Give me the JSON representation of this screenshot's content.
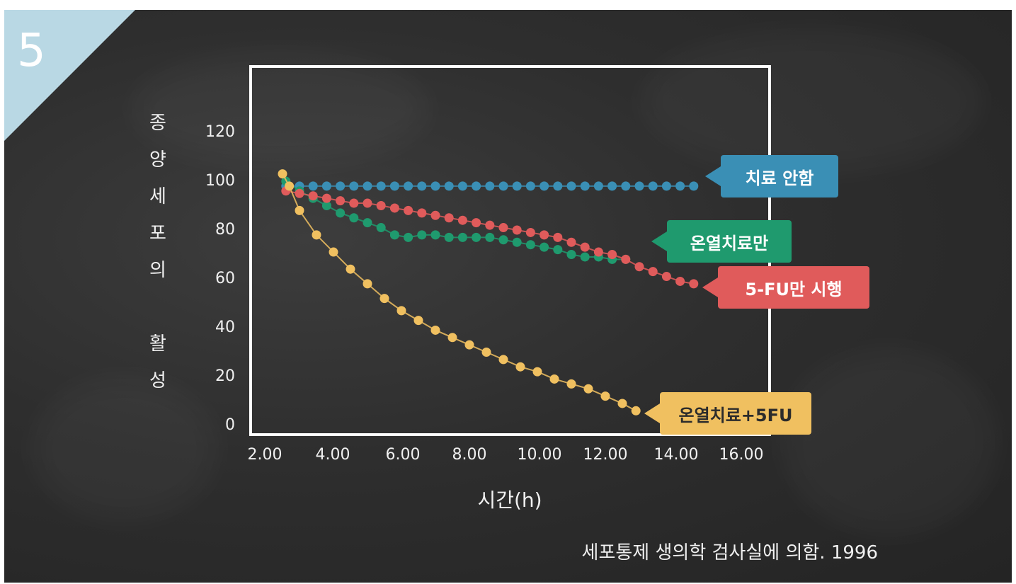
{
  "slide_number": "5",
  "source": "세포통제 생의학 검사실에 의함. 1996",
  "colors": {
    "untreated": "#3a8fb5",
    "hyperthermia": "#1f9a6e",
    "fu": "#e05b5b",
    "combo": "#f0c060",
    "corner": "#b9d8e4"
  },
  "chart_data": {
    "type": "scatter",
    "xlabel": "시간(h)",
    "ylabel": [
      "종",
      "양",
      "세",
      "포",
      "의",
      "",
      "활",
      "성"
    ],
    "x_ticks": [
      "2.00",
      "4.00",
      "6.00",
      "8.00",
      "10.00",
      "12.00",
      "14.00",
      "16.00"
    ],
    "y_ticks": [
      "120",
      "100",
      "80",
      "60",
      "40",
      "20",
      "0"
    ],
    "ylim": [
      0,
      120
    ],
    "grid": false,
    "series": [
      {
        "name": "치료 안함",
        "color": "#3a8fb5",
        "x": [
          2.6,
          3.0,
          3.4,
          3.8,
          4.2,
          4.6,
          5.0,
          5.4,
          5.8,
          6.2,
          6.6,
          7.0,
          7.4,
          7.8,
          8.2,
          8.6,
          9.0,
          9.4,
          9.8,
          10.2,
          10.6,
          11.0,
          11.4,
          11.8,
          12.2,
          12.6,
          13.0,
          13.4,
          13.8,
          14.2,
          14.6
        ],
        "y": [
          98,
          98,
          98,
          98,
          98,
          98,
          98,
          98,
          98,
          98,
          98,
          98,
          98,
          98,
          98,
          98,
          98,
          98,
          98,
          98,
          98,
          98,
          98,
          98,
          98,
          98,
          98,
          98,
          98,
          98,
          98
        ]
      },
      {
        "name": "온열치료만",
        "color": "#1f9a6e",
        "x": [
          2.6,
          3.0,
          3.4,
          3.8,
          4.2,
          4.6,
          5.0,
          5.4,
          5.8,
          6.2,
          6.6,
          7.0,
          7.4,
          7.8,
          8.2,
          8.6,
          9.0,
          9.4,
          9.8,
          10.2,
          10.6,
          11.0,
          11.4,
          11.8,
          12.2,
          12.6
        ],
        "y": [
          100,
          96,
          93,
          90,
          87,
          85,
          83,
          81,
          78,
          77,
          78,
          78,
          77,
          77,
          77,
          77,
          76,
          75,
          74,
          73,
          72,
          70,
          69,
          69,
          68,
          68
        ]
      },
      {
        "name": "5-FU만 시행",
        "color": "#e05b5b",
        "x": [
          2.6,
          3.0,
          3.4,
          3.8,
          4.2,
          4.6,
          5.0,
          5.4,
          5.8,
          6.2,
          6.6,
          7.0,
          7.4,
          7.8,
          8.2,
          8.6,
          9.0,
          9.4,
          9.8,
          10.2,
          10.6,
          11.0,
          11.4,
          11.8,
          12.2,
          12.6,
          13.0,
          13.4,
          13.8,
          14.2,
          14.6
        ],
        "y": [
          96,
          95,
          94,
          93,
          92,
          91,
          91,
          90,
          89,
          88,
          87,
          86,
          85,
          84,
          83,
          82,
          81,
          80,
          79,
          78,
          77,
          75,
          73,
          71,
          70,
          68,
          65,
          63,
          61,
          59,
          58
        ]
      },
      {
        "name": "온열치료+5FU",
        "color": "#f0c060",
        "x": [
          2.5,
          2.7,
          3.0,
          3.5,
          4.0,
          4.5,
          5.0,
          5.5,
          6.0,
          6.5,
          7.0,
          7.5,
          8.0,
          8.5,
          9.0,
          9.5,
          10.0,
          10.5,
          11.0,
          11.5,
          12.0,
          12.5,
          12.9
        ],
        "y": [
          103,
          98,
          88,
          78,
          71,
          64,
          58,
          52,
          47,
          43,
          39,
          36,
          33,
          30,
          27,
          24,
          22,
          19,
          17,
          15,
          12,
          9,
          6
        ]
      }
    ]
  }
}
